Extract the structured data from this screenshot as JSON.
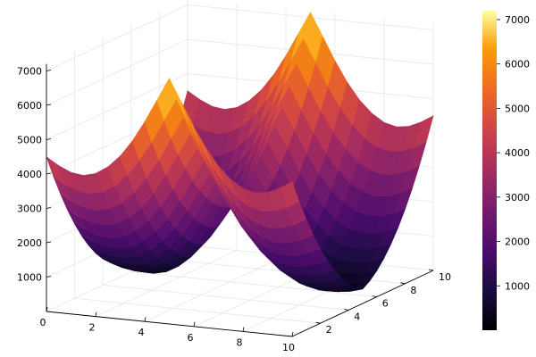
{
  "chart_data": {
    "type": "surface",
    "title": "",
    "xlabel": "",
    "ylabel": "",
    "zlabel": "",
    "xlim": [
      0,
      10
    ],
    "ylim": [
      0,
      10
    ],
    "zlim": [
      0,
      7200
    ],
    "x_ticks": [
      0,
      2,
      4,
      6,
      8,
      10
    ],
    "y_ticks": [
      2,
      4,
      6,
      8,
      10
    ],
    "z_ticks": [
      1000,
      2000,
      3000,
      4000,
      5000,
      6000,
      7000
    ],
    "colorbar_ticks": [
      1000,
      2000,
      3000,
      4000,
      5000,
      6000,
      7000
    ],
    "colorbar_range": [
      0,
      7200
    ],
    "colormap": "inferno",
    "grid": true,
    "legend": "none",
    "x": [
      0,
      0.5,
      1,
      1.5,
      2,
      2.5,
      3,
      3.5,
      4,
      4.5,
      5,
      5.5,
      6,
      6.5,
      7,
      7.5,
      8,
      8.5,
      9,
      9.5,
      10
    ],
    "y": [
      0,
      0.5,
      1,
      1.5,
      2,
      2.5,
      3,
      3.5,
      4,
      4.5,
      5,
      5.5,
      6,
      6.5,
      7,
      7.5,
      8,
      8.5,
      9,
      9.5,
      10
    ],
    "z": [
      [
        4500,
        3830,
        3220,
        2660,
        2160,
        1720,
        1340,
        1020,
        760,
        560,
        420,
        560,
        760,
        1020,
        1340,
        1720,
        2160,
        2660,
        3220,
        3830,
        4500
      ],
      [
        4280,
        3620,
        3020,
        2480,
        2000,
        1570,
        1200,
        890,
        640,
        450,
        320,
        450,
        640,
        890,
        1200,
        1570,
        2000,
        2480,
        3020,
        3620,
        4280
      ],
      [
        4120,
        3480,
        2900,
        2360,
        1880,
        1470,
        1110,
        810,
        570,
        390,
        270,
        390,
        570,
        810,
        1110,
        1470,
        1880,
        2360,
        2900,
        3480,
        4120
      ],
      [
        4070,
        3440,
        2860,
        2330,
        1860,
        1450,
        1090,
        800,
        560,
        380,
        260,
        380,
        560,
        800,
        1090,
        1450,
        1860,
        2330,
        2860,
        3440,
        4070
      ],
      [
        4160,
        3530,
        2950,
        2420,
        1950,
        1530,
        1180,
        880,
        640,
        460,
        340,
        460,
        640,
        880,
        1180,
        1530,
        1950,
        2420,
        2950,
        3530,
        4160
      ],
      [
        4390,
        3740,
        3160,
        2630,
        2160,
        1740,
        1380,
        1080,
        840,
        660,
        540,
        660,
        840,
        1080,
        1380,
        1740,
        2160,
        2630,
        3160,
        3740,
        4390
      ],
      [
        4740,
        4090,
        3500,
        2960,
        2480,
        2060,
        1690,
        1390,
        1140,
        960,
        840,
        960,
        1140,
        1390,
        1690,
        2060,
        2480,
        2960,
        3500,
        4090,
        4740
      ],
      [
        5220,
        4560,
        3950,
        3410,
        2920,
        2480,
        2110,
        1800,
        1550,
        1360,
        1240,
        1360,
        1550,
        1800,
        2110,
        2480,
        2920,
        3410,
        3950,
        4560,
        5220
      ],
      [
        5810,
        5130,
        4520,
        3970,
        3470,
        3030,
        2650,
        2330,
        2080,
        1880,
        1760,
        1880,
        2080,
        2330,
        2650,
        3030,
        3470,
        3970,
        4520,
        5130,
        5810
      ],
      [
        6480,
        5800,
        5180,
        4620,
        4120,
        3670,
        3290,
        2970,
        2710,
        2510,
        2390,
        2510,
        2710,
        2970,
        3290,
        3670,
        4120,
        4620,
        5180,
        5800,
        6480
      ],
      [
        7150,
        6460,
        5830,
        5260,
        4750,
        4300,
        3910,
        3580,
        3320,
        3120,
        3000,
        3120,
        3320,
        3580,
        3910,
        4300,
        4750,
        5260,
        5830,
        6460,
        7150
      ],
      [
        6480,
        5800,
        5180,
        4620,
        4120,
        3670,
        3290,
        2970,
        2710,
        2510,
        2390,
        2510,
        2710,
        2970,
        3290,
        3670,
        4120,
        4620,
        5180,
        5800,
        6480
      ],
      [
        5810,
        5130,
        4520,
        3970,
        3470,
        3030,
        2650,
        2330,
        2080,
        1880,
        1760,
        1880,
        2080,
        2330,
        2650,
        3030,
        3470,
        3970,
        4520,
        5130,
        5810
      ],
      [
        5220,
        4560,
        3950,
        3410,
        2920,
        2480,
        2110,
        1800,
        1550,
        1360,
        1240,
        1360,
        1550,
        1800,
        2110,
        2480,
        2920,
        3410,
        3950,
        4560,
        5220
      ],
      [
        4740,
        4090,
        3500,
        2960,
        2480,
        2060,
        1690,
        1390,
        1140,
        960,
        840,
        960,
        1140,
        1390,
        1690,
        2060,
        2480,
        2960,
        3500,
        4090,
        4740
      ],
      [
        4390,
        3740,
        3160,
        2630,
        2160,
        1740,
        1380,
        1080,
        840,
        660,
        540,
        660,
        840,
        1080,
        1380,
        1740,
        2160,
        2630,
        3160,
        3740,
        4390
      ],
      [
        4160,
        3530,
        2950,
        2420,
        1950,
        1530,
        1180,
        880,
        640,
        460,
        340,
        460,
        640,
        880,
        1180,
        1530,
        1950,
        2420,
        2950,
        3530,
        4160
      ],
      [
        4070,
        3440,
        2860,
        2330,
        1860,
        1450,
        1090,
        800,
        560,
        380,
        260,
        380,
        560,
        800,
        1090,
        1450,
        1860,
        2330,
        2860,
        3440,
        4070
      ],
      [
        4120,
        3480,
        2900,
        2360,
        1880,
        1470,
        1110,
        810,
        570,
        390,
        270,
        390,
        570,
        810,
        1110,
        1470,
        1880,
        2360,
        2900,
        3480,
        4120
      ],
      [
        4280,
        3620,
        3020,
        2480,
        2000,
        1570,
        1200,
        890,
        640,
        450,
        320,
        450,
        640,
        890,
        1200,
        1570,
        2000,
        2480,
        3020,
        3620,
        4280
      ],
      [
        4500,
        3830,
        3220,
        2660,
        2160,
        1720,
        1340,
        1020,
        760,
        560,
        420,
        560,
        760,
        1020,
        1340,
        1720,
        2160,
        2660,
        3220,
        3830,
        4500
      ]
    ]
  }
}
